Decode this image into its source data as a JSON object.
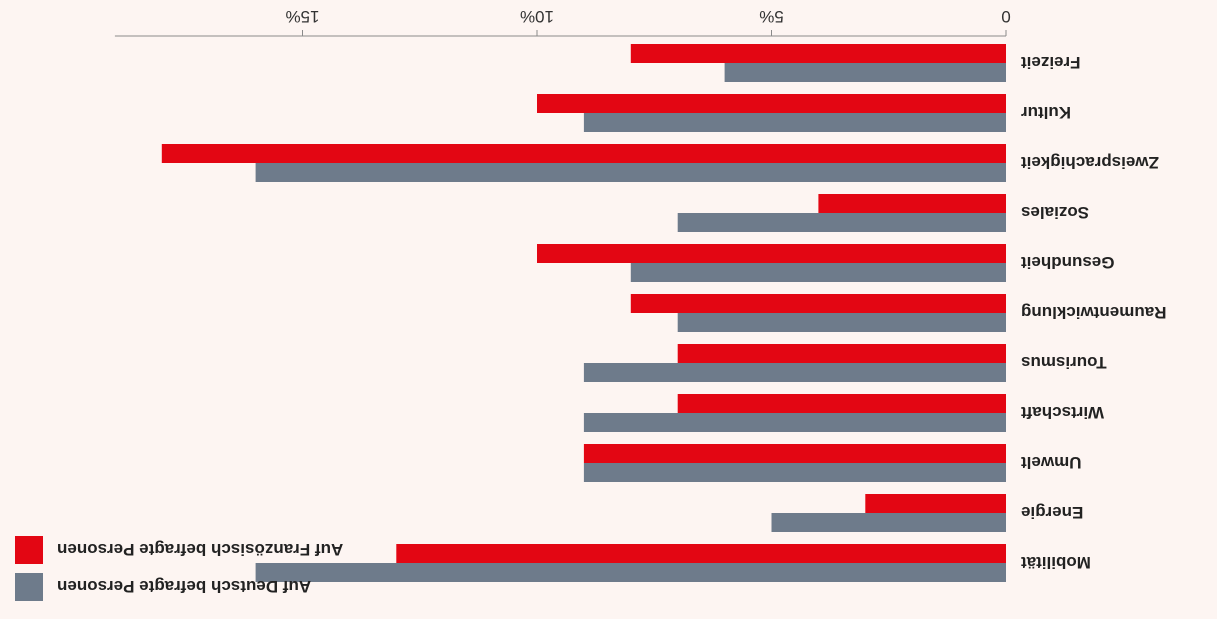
{
  "chart_data": {
    "type": "bar",
    "orientation": "horizontal",
    "rendered_rotation_deg": 180,
    "categories": [
      "Mobilität",
      "Energie",
      "Umwelt",
      "Wirtschaft",
      "Tourismus",
      "Raumentwicklung",
      "Gesundheit",
      "Soziales",
      "Zweisprachigkeit",
      "Kultur",
      "Freizeit"
    ],
    "series": [
      {
        "name": "Auf Deutsch befragte Personen",
        "color": "#6e7b8b",
        "values": [
          16,
          5,
          9,
          9,
          9,
          7,
          8,
          7,
          16,
          9,
          6
        ]
      },
      {
        "name": "Auf Französisch befragte Personen",
        "color": "#e30613",
        "values": [
          13,
          3,
          9,
          7,
          7,
          8,
          10,
          4,
          18,
          10,
          8
        ]
      }
    ],
    "x_ticks": [
      "0",
      "5%",
      "10%",
      "15%"
    ],
    "x_tick_values": [
      0,
      5,
      10,
      15
    ],
    "xlim": [
      0,
      19
    ],
    "legend_position": "bottom-left",
    "grid": false
  }
}
